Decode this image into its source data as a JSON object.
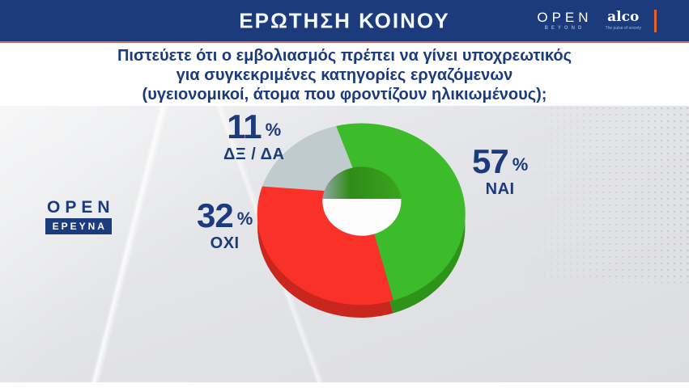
{
  "header": {
    "title": "ΕΡΩΤΗΣΗ ΚΟΙΝΟΥ",
    "open_logo": {
      "text": "OPEN",
      "subtext": "BEYOND"
    },
    "alco_logo": {
      "text": "alco",
      "tagline": "The pulse of society"
    }
  },
  "question": {
    "lines": [
      "Πιστεύετε ότι ο εμβολιασμός πρέπει να γίνει υποχρεωτικός",
      "για συγκεκριμένες κατηγορίες εργαζόμενων",
      "(υγειονομικοί, άτομα που φροντίζουν ηλικιωμένους);"
    ]
  },
  "side_logo": {
    "open": "OPEN",
    "banner": "ΕΡΕΥΝΑ"
  },
  "chart_data": {
    "type": "pie",
    "style": "3d-donut",
    "title": "ΕΡΩΤΗΣΗ ΚΟΙΝΟΥ",
    "subtitle": "Πιστεύετε ότι ο εμβολιασμός πρέπει να γίνει υποχρεωτικός για συγκεκριμένες κατηγορίες εργαζόμενων (υγειονομικοί, άτομα που φροντίζουν ηλικιωμένους);",
    "categories": [
      "ΝΑΙ",
      "ΟΧΙ",
      "ΔΞ / ΔΑ"
    ],
    "values": [
      57,
      32,
      11
    ],
    "unit": "%",
    "legend": "none",
    "colors": {
      "yes": "#3CBB2B",
      "no": "#F93129",
      "dk": "#C0CBCE",
      "label_text": "#1B3B7D"
    },
    "segments": [
      {
        "label": "ΝΑΙ",
        "value": 57,
        "unit": "%",
        "color": "#3CBB2B",
        "side_color": "#2D9419",
        "angles_deg": [
          -14,
          162
        ]
      },
      {
        "label": "ΟΧΙ",
        "value": 32,
        "unit": "%",
        "color": "#F93129",
        "side_color": "#C9261E",
        "angles_deg": [
          162,
          288
        ]
      },
      {
        "label": "ΔΞ / ΔΑ",
        "value": 11,
        "unit": "%",
        "color": "#C0CBCE",
        "side_color": "#9BA9AD",
        "angles_deg": [
          288,
          346
        ]
      }
    ],
    "note_layout": "angles_deg are apparent on-screen angles of the perspective 3D render, clockwise from 12 o'clock"
  }
}
